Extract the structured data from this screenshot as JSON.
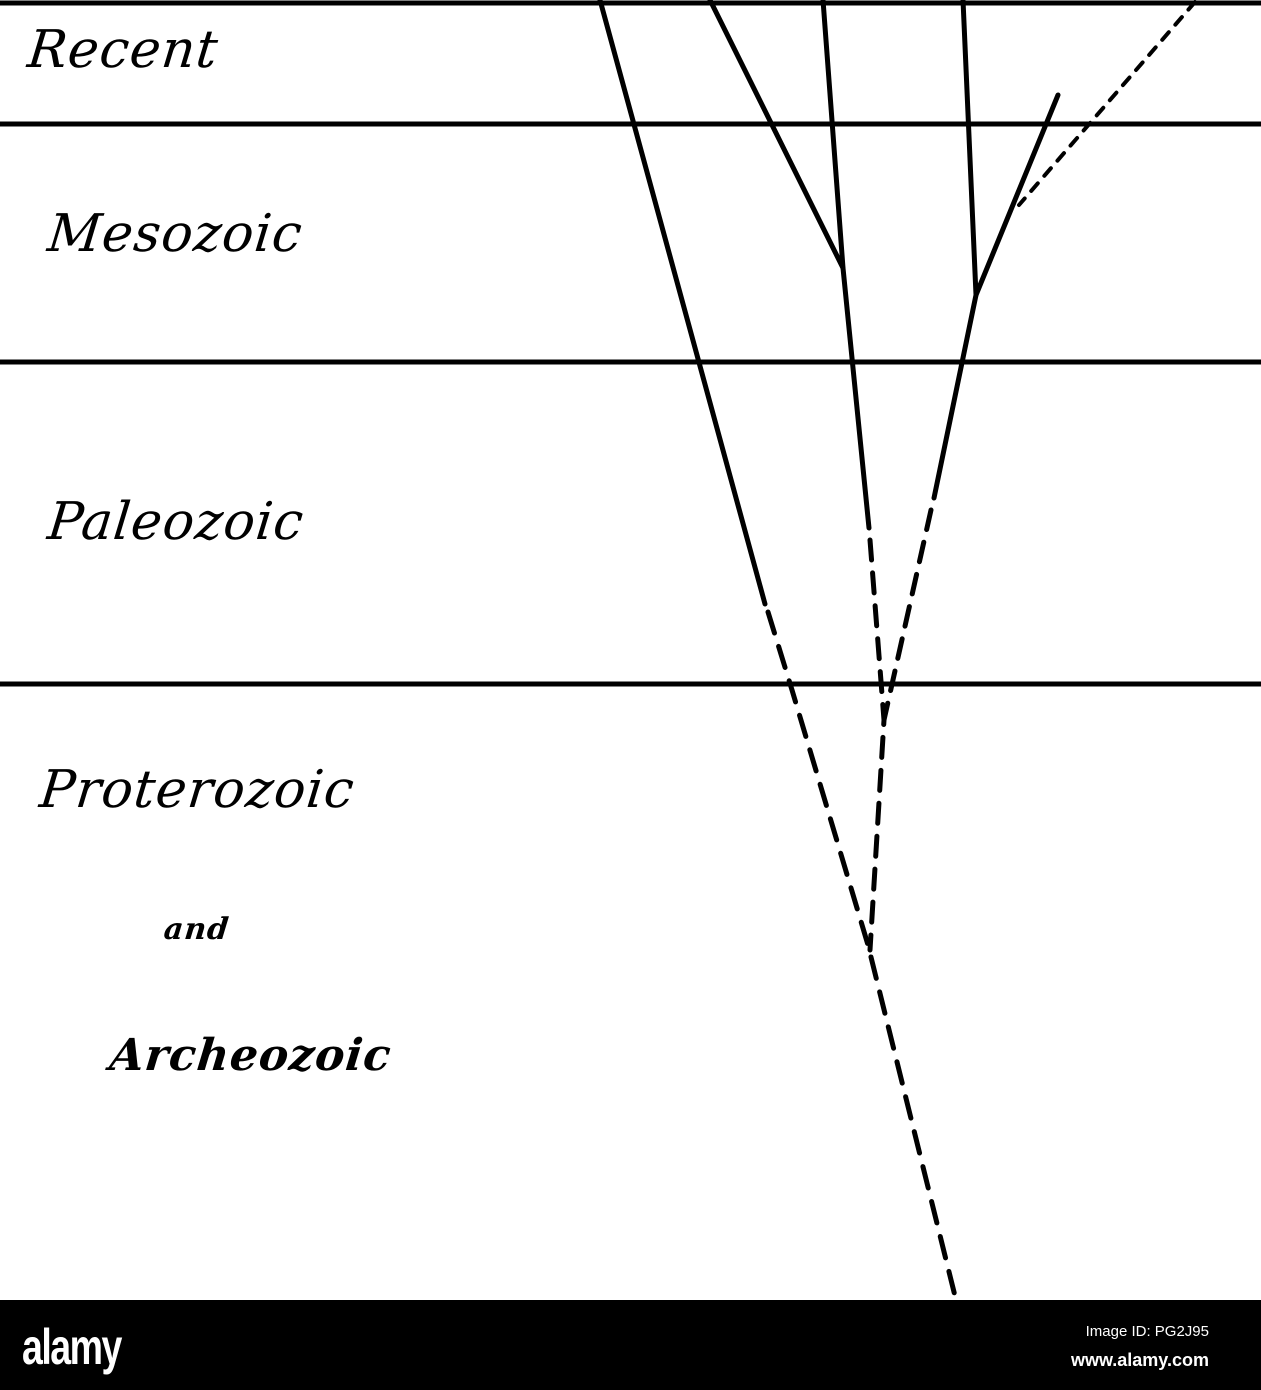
{
  "eras": [
    "Recent",
    "Mesozoic",
    "Paleozoic",
    "Proterozoic",
    "and",
    "Archeozoic"
  ],
  "watermark": {
    "logo": "alamy",
    "image_id": "Image ID: PG2J95",
    "site": "www.alamy.com"
  },
  "colors": {
    "ink": "#000000",
    "paper": "#ffffff",
    "footer": "#000000"
  }
}
